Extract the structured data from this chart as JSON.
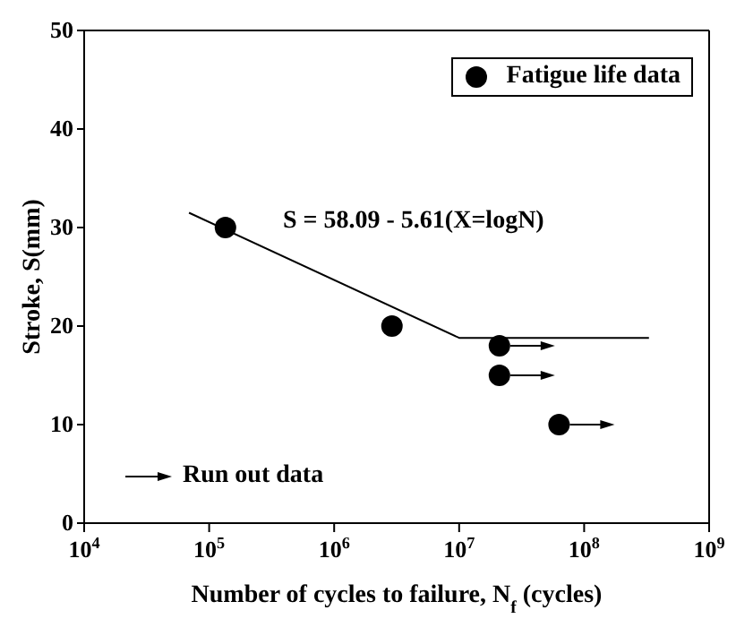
{
  "chart_data": {
    "type": "scatter",
    "xlabel": "Number of cycles to failure, N$_{f}$ (cycles)",
    "ylabel": "Stroke, S(mm)",
    "log": "x",
    "xlim": [
      10000,
      1000000000
    ],
    "xticks": [
      {
        "value": 10000,
        "label": "10$^{4}$"
      },
      {
        "value": 100000,
        "label": "10$^{5}$"
      },
      {
        "value": 1000000,
        "label": "10$^{6}$"
      },
      {
        "value": 10000000,
        "label": "10$^{7}$"
      },
      {
        "value": 100000000,
        "label": "10$^{8}$"
      },
      {
        "value": 1000000000,
        "label": "10$^{9}$"
      }
    ],
    "ylim": [
      0,
      50
    ],
    "yticks": [
      0,
      10,
      20,
      30,
      40,
      50
    ],
    "grid": false,
    "legend": "top right",
    "marker": "circle",
    "series": [
      {
        "name": "Fatigue life data",
        "color": "#000000",
        "x": [
          135000,
          2900000,
          21000000,
          21000000,
          63000000
        ],
        "values": [
          30,
          20,
          18,
          15,
          10
        ]
      },
      {
        "name": "S = 58.09 - 5.61(X=logN)",
        "type": "line",
        "color": "#000000",
        "marker": "none",
        "line_style": "solid",
        "x": [
          69000,
          10000000,
          330000000
        ],
        "values": [
          31.5,
          18.8,
          18.8
        ]
      }
    ],
    "annotations": [
      "Run out data"
    ]
  }
}
